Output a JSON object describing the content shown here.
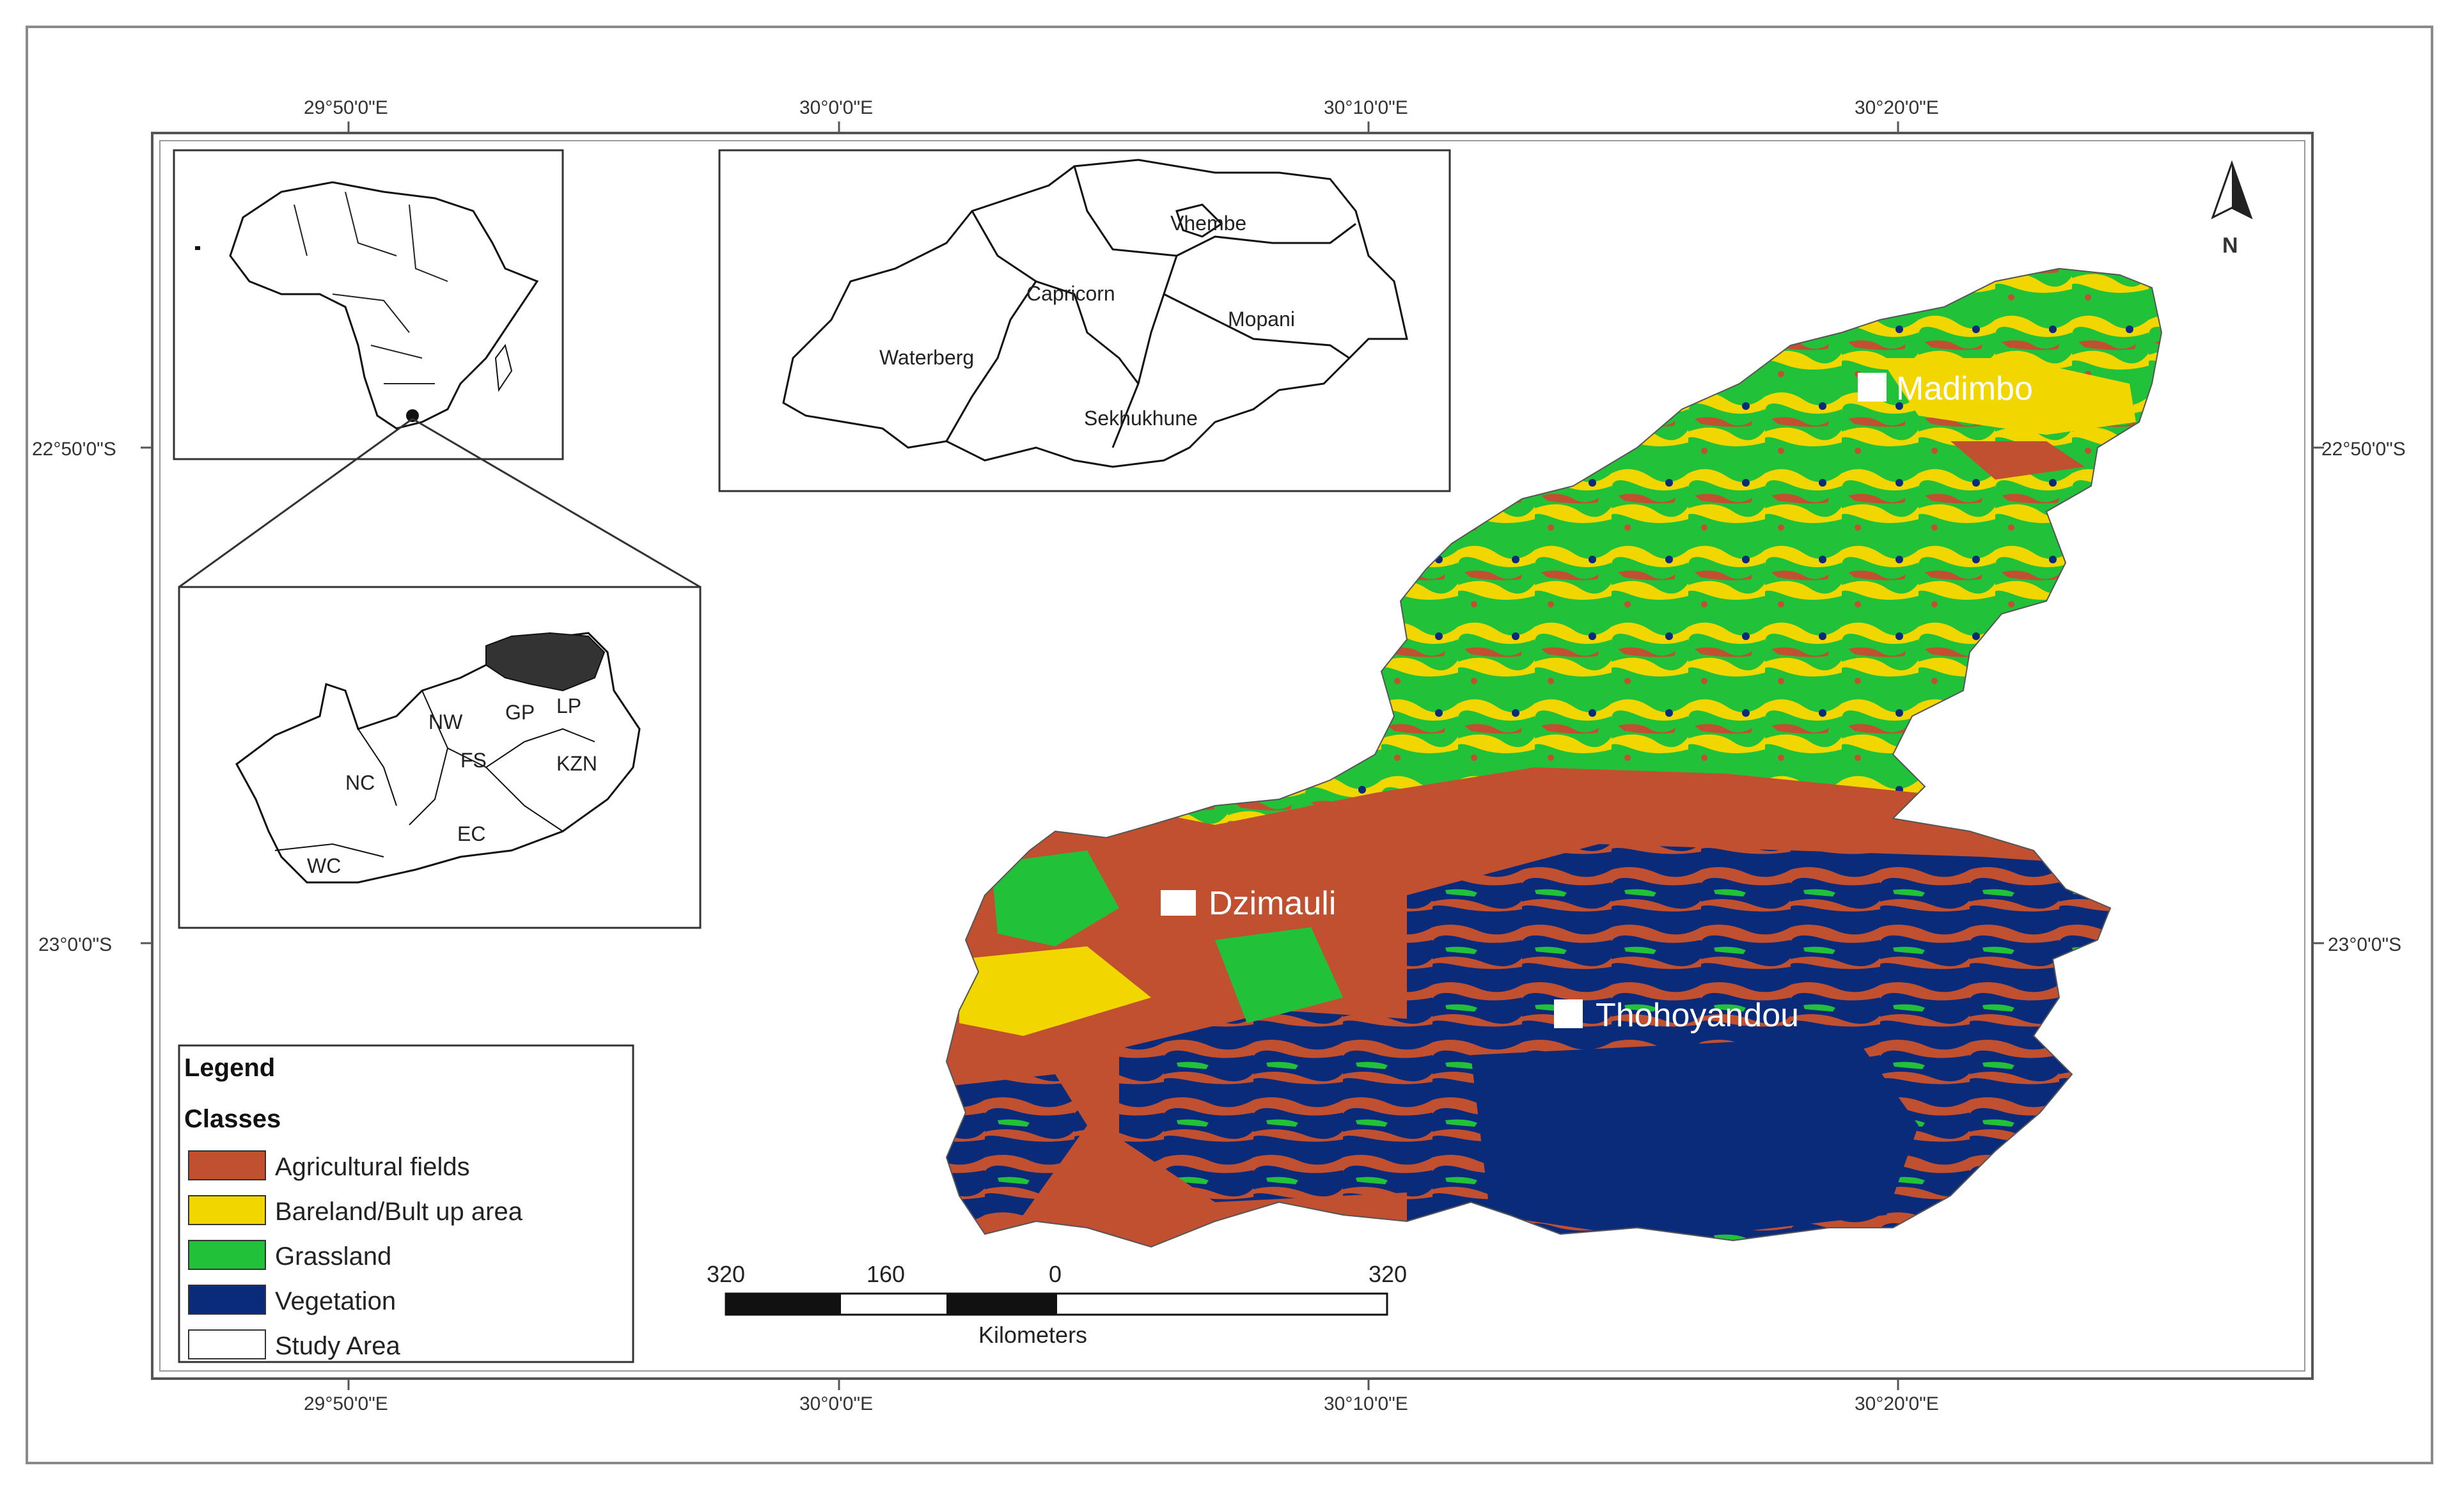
{
  "map": {
    "coordinates": {
      "top": [
        "29°50'0\"E",
        "30°0'0\"E",
        "30°10'0\"E",
        "30°20'0\"E"
      ],
      "bottom": [
        "29°50'0\"E",
        "30°0'0\"E",
        "30°10'0\"E",
        "30°20'0\"E"
      ],
      "left": [
        "22°50'0\"S",
        "23°0'0\"S"
      ],
      "right": [
        "22°50'0\"S",
        "23°0'0\"S"
      ]
    },
    "north_arrow_label": "N",
    "inset_limpopo": {
      "districts": [
        "Vhembe",
        "Capricorn",
        "Mopani",
        "Waterberg",
        "Sekhukhune"
      ]
    },
    "inset_south_africa": {
      "provinces": [
        "NW",
        "NC",
        "FS",
        "KZN",
        "EC",
        "WC",
        "GP",
        "LP"
      ]
    },
    "towns": [
      "Madimbo",
      "Dzimauli",
      "Thohoyandou"
    ],
    "legend": {
      "title": "Legend",
      "subtitle": "Classes",
      "items": [
        {
          "label": "Agricultural fields",
          "color": "#c0502f"
        },
        {
          "label": "Bareland/Bult up area",
          "color": "#f2d600"
        },
        {
          "label": "Grassland",
          "color": "#22c13a"
        },
        {
          "label": "Vegetation",
          "color": "#0a2a7a"
        },
        {
          "label": "Study Area",
          "color": "#ffffff"
        }
      ]
    },
    "scale_bar": {
      "ticks": [
        "320",
        "160",
        "0",
        "320"
      ],
      "unit": "Kilometers"
    }
  }
}
